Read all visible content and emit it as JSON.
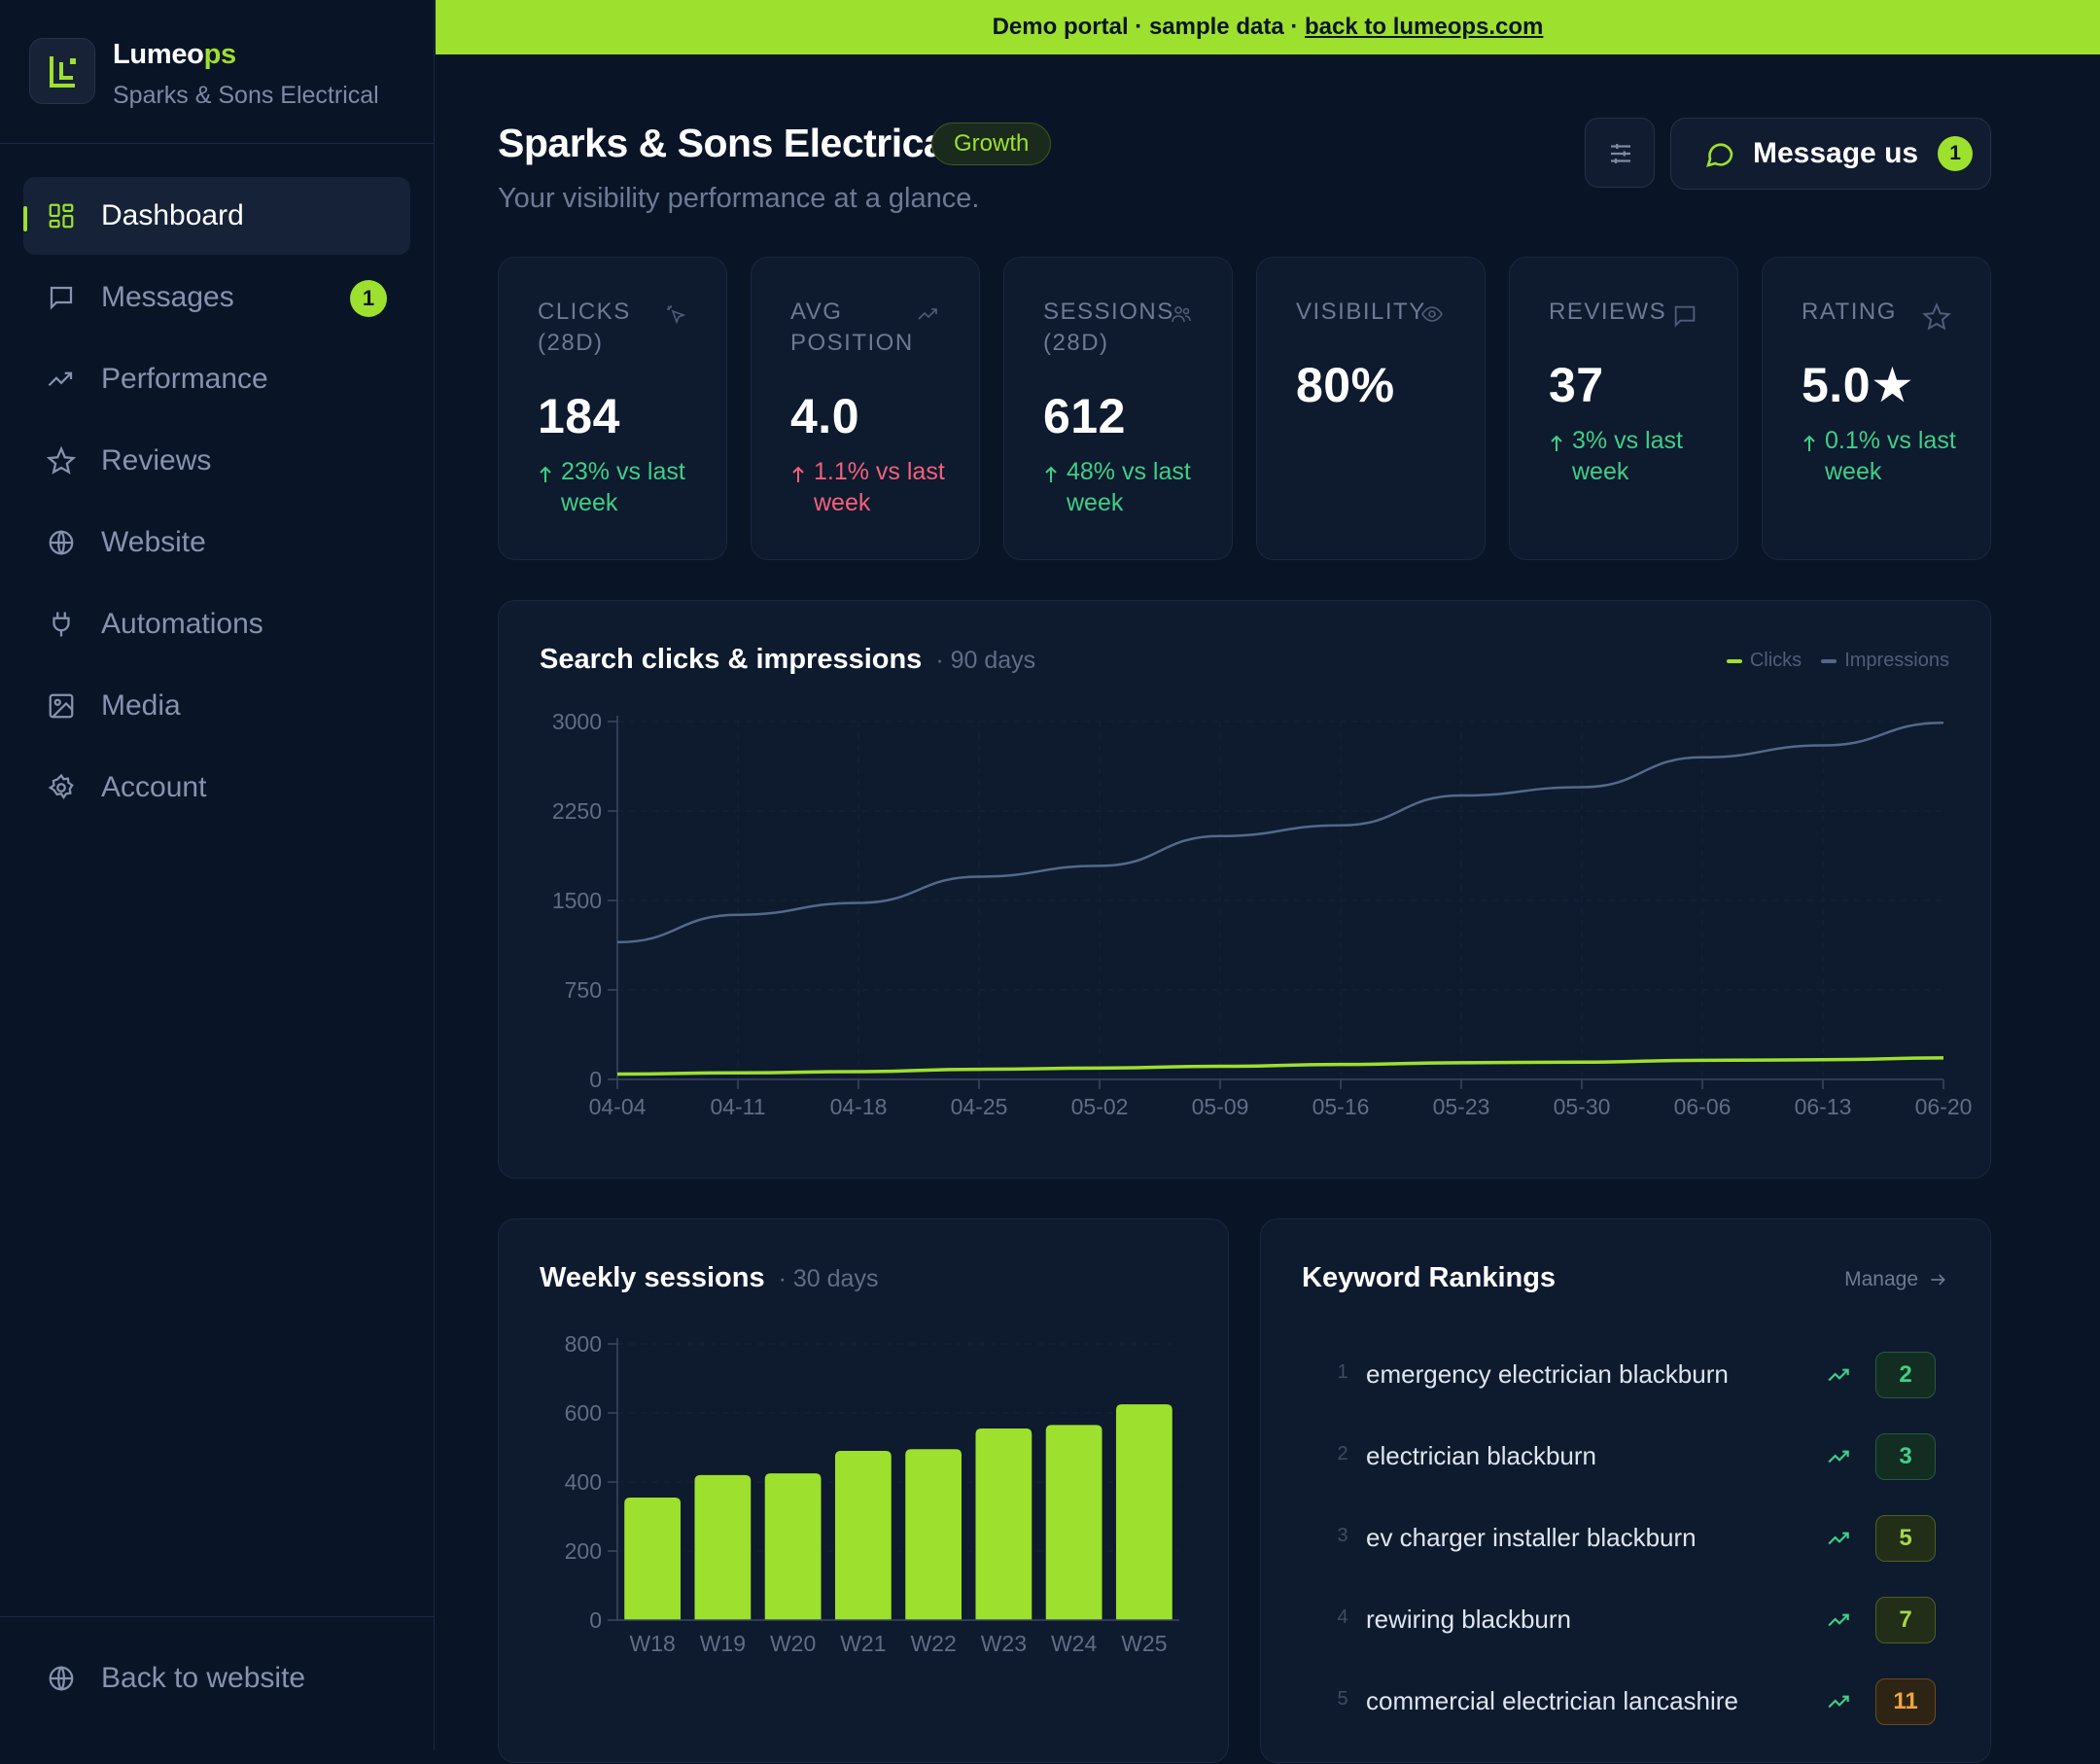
{
  "brand": {
    "name_main": "Lumeo",
    "name_accent": "ps",
    "client": "Sparks & Sons Electrical"
  },
  "nav": [
    {
      "label": "Dashboard",
      "icon": "grid-icon",
      "active": true
    },
    {
      "label": "Messages",
      "icon": "message-square-icon",
      "badge": "1"
    },
    {
      "label": "Performance",
      "icon": "trending-up-icon"
    },
    {
      "label": "Reviews",
      "icon": "star-icon"
    },
    {
      "label": "Website",
      "icon": "globe-icon"
    },
    {
      "label": "Automations",
      "icon": "plug-icon"
    },
    {
      "label": "Media",
      "icon": "image-icon"
    },
    {
      "label": "Account",
      "icon": "gear-icon"
    }
  ],
  "footer": {
    "back_label": "Back to website"
  },
  "banner": {
    "text": "Demo portal · sample data · ",
    "link": "back to lumeops.com"
  },
  "header": {
    "title": "Sparks & Sons Electrical",
    "plan": "Growth",
    "subtitle": "Your visibility performance at a glance.",
    "message_label": "Message us",
    "message_count": "1"
  },
  "stats": [
    {
      "label": "CLICKS (28D)",
      "value": "184",
      "delta": "23% vs last week",
      "direction": "up",
      "icon": "cursor-click-icon"
    },
    {
      "label": "AVG POSITION",
      "value": "4.0",
      "delta": "1.1% vs last week",
      "direction": "down",
      "icon": "trending-up-icon"
    },
    {
      "label": "SESSIONS (28D)",
      "value": "612",
      "delta": "48% vs last week",
      "direction": "up",
      "icon": "users-icon"
    },
    {
      "label": "VISIBILITY",
      "value": "80%",
      "delta": "",
      "direction": "",
      "icon": "eye-icon"
    },
    {
      "label": "REVIEWS",
      "value": "37",
      "delta": "3% vs last week",
      "direction": "up",
      "icon": "message-square-icon"
    },
    {
      "label": "RATING",
      "value": "5.0★",
      "delta": "0.1% vs last week",
      "direction": "up",
      "icon": "star-icon"
    }
  ],
  "search_chart": {
    "title": "Search clicks & impressions",
    "range": "· 90 days",
    "legend": [
      "Clicks",
      "Impressions"
    ]
  },
  "sessions_chart": {
    "title": "Weekly sessions",
    "range": "· 30 days"
  },
  "keywords": {
    "title": "Keyword Rankings",
    "manage_label": "Manage",
    "items": [
      {
        "rank": "1",
        "term": "emergency electrician blackburn",
        "position": "2",
        "tone": "good"
      },
      {
        "rank": "2",
        "term": "electrician blackburn",
        "position": "3",
        "tone": "good"
      },
      {
        "rank": "3",
        "term": "ev charger installer blackburn",
        "position": "5",
        "tone": "mid"
      },
      {
        "rank": "4",
        "term": "rewiring blackburn",
        "position": "7",
        "tone": "mid"
      },
      {
        "rank": "5",
        "term": "commercial electrician lancashire",
        "position": "11",
        "tone": "warn"
      }
    ]
  },
  "colors": {
    "accent": "#9de02e",
    "impressions": "#54698a",
    "up": "#3fcf86",
    "down": "#f2617a"
  },
  "chart_data": [
    {
      "type": "line",
      "title": "Search clicks & impressions",
      "x": [
        "04-04",
        "04-11",
        "04-18",
        "04-25",
        "05-02",
        "05-09",
        "05-16",
        "05-23",
        "05-30",
        "06-06",
        "06-13",
        "06-20"
      ],
      "ylim": [
        0,
        3000
      ],
      "yticks": [
        0,
        750,
        1500,
        2250,
        3000
      ],
      "series": [
        {
          "name": "Impressions",
          "values": [
            1150,
            1380,
            1480,
            1700,
            1790,
            2040,
            2130,
            2380,
            2450,
            2700,
            2800,
            2990
          ]
        },
        {
          "name": "Clicks",
          "values": [
            45,
            55,
            65,
            85,
            95,
            110,
            125,
            140,
            145,
            160,
            165,
            180
          ]
        }
      ],
      "legend": "top-right",
      "grid": true
    },
    {
      "type": "bar",
      "title": "Weekly sessions",
      "categories": [
        "W18",
        "W19",
        "W20",
        "W21",
        "W22",
        "W23",
        "W24",
        "W25"
      ],
      "values": [
        355,
        420,
        425,
        490,
        495,
        555,
        565,
        625
      ],
      "ylim": [
        0,
        800
      ],
      "yticks": [
        0,
        200,
        400,
        600,
        800
      ],
      "grid": true
    }
  ]
}
